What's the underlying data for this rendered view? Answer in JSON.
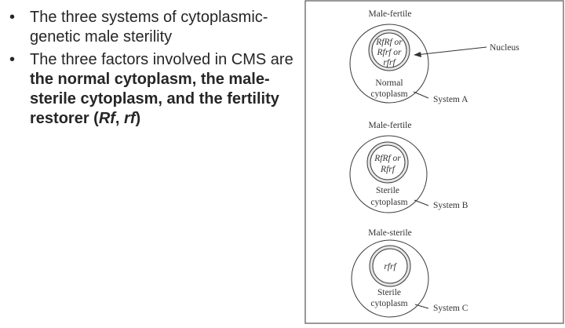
{
  "slide": {
    "bullets": [
      {
        "text": "The three systems of cytoplasmic-genetic male sterility"
      },
      {
        "text_prefix": "The three factors involved in CMS are ",
        "bold_text": "the normal cytoplasm, the male-sterile cytoplasm, and the fertility restorer (",
        "bold_rf1": "Rf",
        "bold_sep": ", ",
        "bold_rf2": "rf",
        "bold_close": ")"
      }
    ]
  },
  "figure": {
    "nucleus_label": "Nucleus",
    "systems": [
      {
        "phenotype": "Male-fertile",
        "genotype_lines": [
          "RfRf or",
          "Rfrf or",
          "rfrf"
        ],
        "cytoplasm_lines": [
          "Normal",
          "cytoplasm"
        ],
        "system_label": "System A"
      },
      {
        "phenotype": "Male-fertile",
        "genotype_lines": [
          "RfRf or",
          "Rfrf"
        ],
        "cytoplasm_lines": [
          "Sterile",
          "cytoplasm"
        ],
        "system_label": "System B"
      },
      {
        "phenotype": "Male-sterile",
        "genotype_lines": [
          "rfrf"
        ],
        "cytoplasm_lines": [
          "Sterile",
          "cytoplasm"
        ],
        "system_label": "System C"
      }
    ]
  }
}
